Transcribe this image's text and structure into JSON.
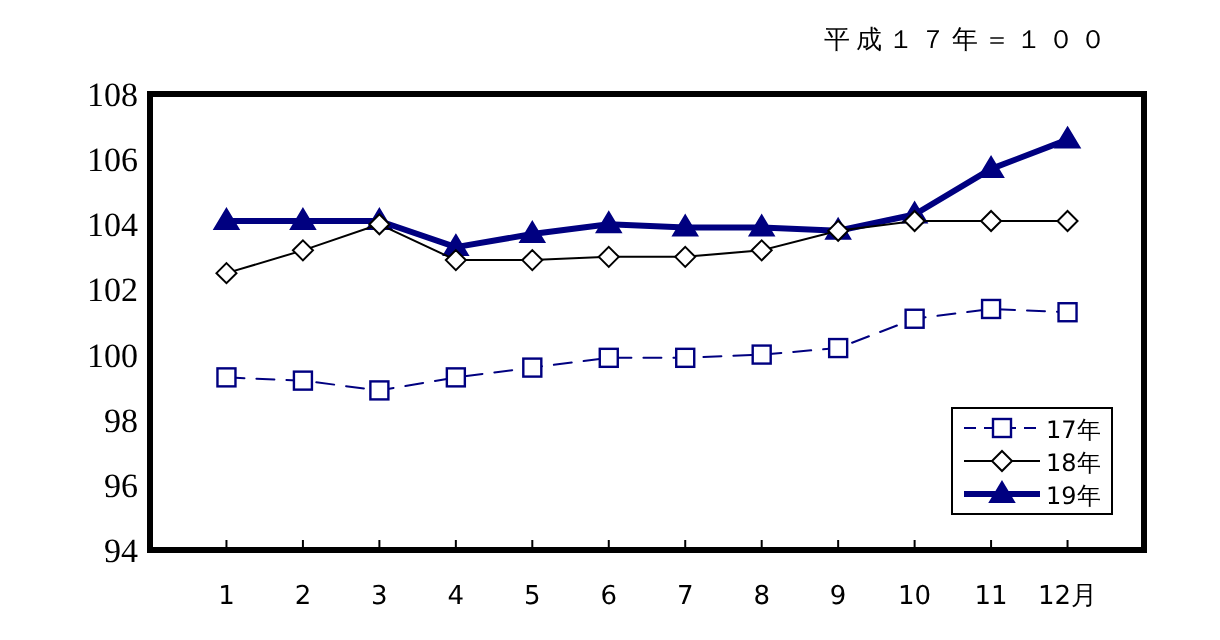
{
  "chart_data": {
    "type": "line",
    "annotations": [
      "平成１７年＝１００"
    ],
    "categories": [
      "1",
      "2",
      "3",
      "4",
      "5",
      "6",
      "7",
      "8",
      "9",
      "10",
      "11",
      "12月"
    ],
    "series": [
      {
        "name": "17年",
        "color": "#000080",
        "marker": "square",
        "line_style": "dashed",
        "values": [
          99.3,
          99.2,
          98.9,
          99.3,
          99.6,
          99.9,
          99.9,
          100.0,
          100.2,
          101.1,
          101.4,
          101.3
        ]
      },
      {
        "name": "18年",
        "color": "#000000",
        "marker": "diamond",
        "line_style": "solid",
        "values": [
          102.5,
          103.2,
          104.0,
          102.9,
          102.9,
          103.0,
          103.0,
          103.2,
          103.8,
          104.1,
          104.1,
          104.1
        ]
      },
      {
        "name": "19年",
        "color": "#000080",
        "marker": "triangle",
        "line_style": "solid",
        "values": [
          104.1,
          104.1,
          104.1,
          103.3,
          103.7,
          104.0,
          103.9,
          103.9,
          103.8,
          104.3,
          105.7,
          106.6
        ]
      }
    ],
    "ylim": [
      94,
      108
    ],
    "yticks": [
      94,
      96,
      98,
      100,
      102,
      104,
      106,
      108
    ],
    "legend": "bottom right"
  }
}
